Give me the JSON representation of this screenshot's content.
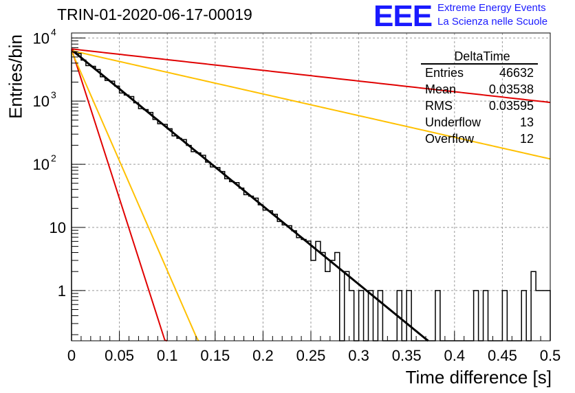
{
  "header": {
    "run_title": "TRIN-01-2020-06-17-00019",
    "logo_text": "EEE",
    "logo_line1": "Extreme Energy Events",
    "logo_line2": "La Scienza nelle Scuole"
  },
  "stats_box": {
    "title": "DeltaTime",
    "rows": [
      {
        "label": "Entries",
        "value": "46632"
      },
      {
        "label": "Mean",
        "value": "0.03538"
      },
      {
        "label": "RMS",
        "value": "0.03595"
      },
      {
        "label": "Underflow",
        "value": "13"
      },
      {
        "label": "Overflow",
        "value": "12"
      }
    ]
  },
  "chart_data": {
    "type": "histogram",
    "title": "",
    "xlabel": "Time difference [s]",
    "ylabel": "Entries/bin",
    "xlim": [
      0,
      0.5
    ],
    "ylim": [
      0.16,
      12000
    ],
    "yscale": "log",
    "grid": true,
    "x_ticks": [
      "0",
      "0.05",
      "0.1",
      "0.15",
      "0.2",
      "0.25",
      "0.3",
      "0.35",
      "0.4",
      "0.45",
      "0.5"
    ],
    "y_ticks": [
      {
        "value": 10000,
        "label": "10",
        "exp": "4"
      },
      {
        "value": 1000,
        "label": "10",
        "exp": "3"
      },
      {
        "value": 100,
        "label": "10",
        "exp": "2"
      },
      {
        "value": 10,
        "label": "10",
        "exp": ""
      },
      {
        "value": 1,
        "label": "1",
        "exp": ""
      }
    ],
    "histogram": {
      "bin_width": 0.005,
      "tail_counts": {
        "0.25": 3,
        "0.255": 6,
        "0.26": 4,
        "0.265": 2,
        "0.27": 3,
        "0.275": 4,
        "0.285": 2,
        "0.29": 1,
        "0.295": 0,
        "0.3": 1,
        "0.31": 1,
        "0.315": 0,
        "0.32": 1,
        "0.33": 0,
        "0.335": 0,
        "0.34": 1,
        "0.345": 0,
        "0.35": 1,
        "0.36": 0,
        "0.365": 0,
        "0.37": 0,
        "0.375": 0,
        "0.38": 1,
        "0.39": 0,
        "0.4": 0,
        "0.41": 0,
        "0.415": 0,
        "0.42": 1,
        "0.425": 0,
        "0.43": 1,
        "0.435": 0,
        "0.44": 0,
        "0.45": 1,
        "0.46": 0,
        "0.47": 1,
        "0.475": 0,
        "0.48": 2,
        "0.485": 1,
        "0.49": 1,
        "0.495": 1
      },
      "decay_start": 6500,
      "decay_rate_per_s": 28.5
    },
    "series": [
      {
        "color": "#000000",
        "kind": "fit",
        "y0": 6500,
        "slope_per_s": 28.5
      },
      {
        "color": "#e00000",
        "kind": "line",
        "y0": 6700,
        "slope_per_s": 3.9
      },
      {
        "color": "#ffc000",
        "kind": "line",
        "y0": 6300,
        "slope_per_s": 7.9
      },
      {
        "color": "#e00000",
        "kind": "line",
        "y0": 6700,
        "slope_per_s": 109
      },
      {
        "color": "#ffc000",
        "kind": "line",
        "y0": 6200,
        "slope_per_s": 80
      }
    ]
  }
}
